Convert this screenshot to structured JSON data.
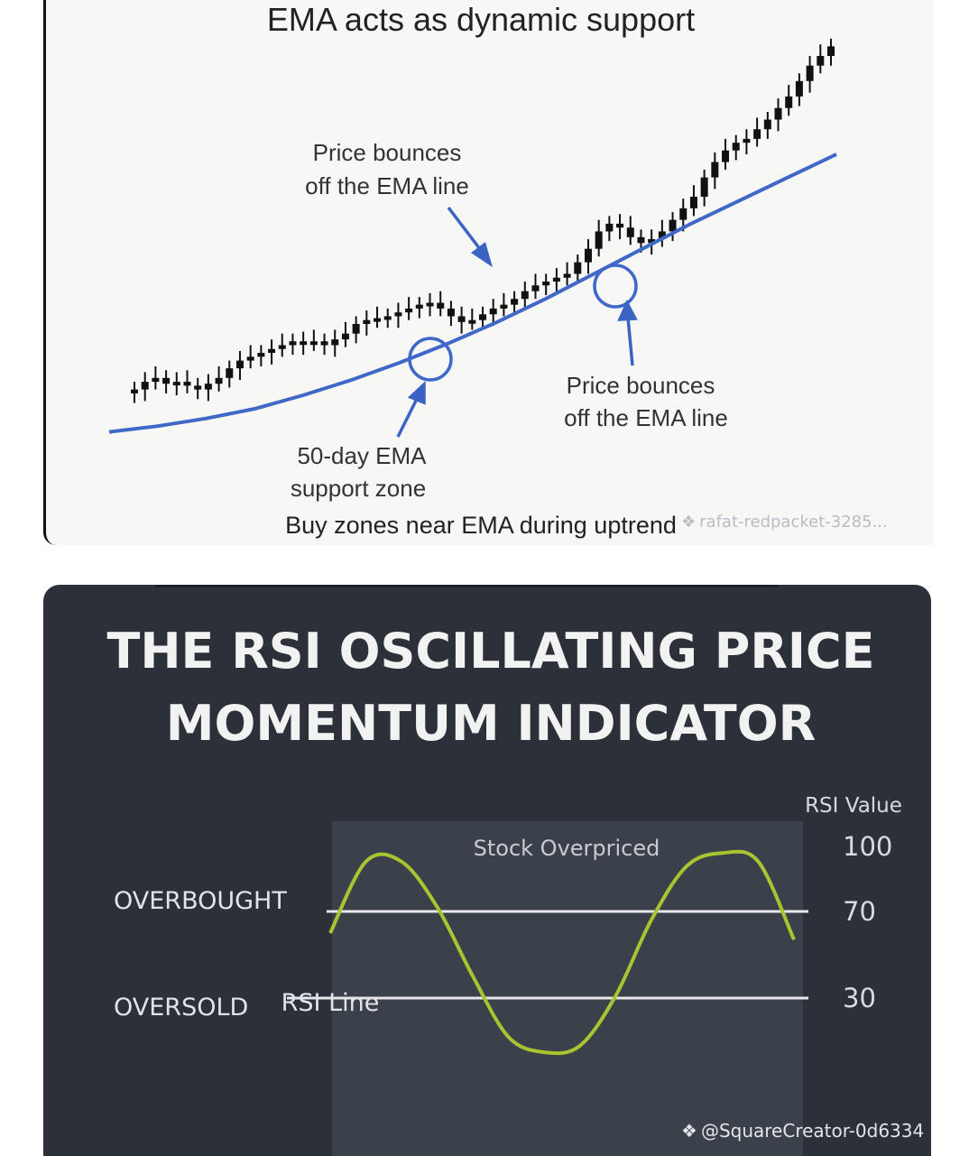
{
  "ema_panel": {
    "watermark": "rafat-redpacket-3285...",
    "watermark_icon": "diamond-logo-icon"
  },
  "rsi_panel": {
    "watermark": "@SquareCreator-0d6334",
    "watermark_icon": "diamond-logo-icon"
  },
  "colors": {
    "ema_background": "#f7f7f5",
    "candle": "#111111",
    "ema_line": "#3f68c8",
    "arrow": "#3a63c4",
    "rsi_background": "#2b3039",
    "rsi_zone": "#3b414a",
    "rsi_line": "#a6c531",
    "rsi_levels": "#e6e8ea"
  },
  "chart_data": [
    {
      "type": "candlestick",
      "title": "EMA acts as dynamic support",
      "subtitle": "Buy zones near EMA during uptrend",
      "series": [
        {
          "name": "Price",
          "values": [
            22,
            26,
            28,
            25,
            26,
            24,
            22,
            25,
            28,
            33,
            37,
            39,
            41,
            43,
            45,
            47,
            46,
            47,
            45,
            48,
            51,
            56,
            58,
            59,
            60,
            62,
            64,
            66,
            67,
            64,
            60,
            57,
            58,
            61,
            64,
            66,
            69,
            73,
            76,
            78,
            80,
            82,
            88,
            95,
            104,
            108,
            106,
            101,
            98,
            100,
            104,
            110,
            116,
            122,
            132,
            140,
            146,
            150,
            152,
            157,
            162,
            168,
            174,
            182,
            190,
            195,
            200
          ]
        },
        {
          "name": "50-day EMA",
          "values": [
            0,
            3,
            7,
            12,
            19,
            27,
            36,
            46,
            57,
            69,
            82,
            95,
            108,
            120,
            132,
            144
          ]
        }
      ],
      "annotations": [
        {
          "text_lines": [
            "Price bounces",
            "off the EMA line"
          ],
          "target": "candles"
        },
        {
          "text_lines": [
            "Price bounces",
            "off the EMA line"
          ],
          "target": "ema-touch-2"
        },
        {
          "text_lines": [
            "50-day EMA",
            "support zone"
          ],
          "target": "ema-touch-1"
        }
      ],
      "ylim": [
        -10,
        210
      ]
    },
    {
      "type": "line",
      "title_lines": [
        "THE RSI OSCILLATING PRICE",
        "MOMENTUM INDICATOR"
      ],
      "ylabel": "RSI Value",
      "yticks": [
        100,
        70,
        30
      ],
      "ylim": [
        0,
        100
      ],
      "levels": [
        {
          "label": "OVERBOUGHT",
          "value": 70
        },
        {
          "label": "OVERSOLD",
          "value": 30
        }
      ],
      "zone_label": "Stock Overpriced",
      "line_label": "RSI Line",
      "series": [
        {
          "name": "RSI Line",
          "values": [
            60,
            93,
            93,
            72,
            40,
            12,
            5,
            8,
            31,
            66,
            91,
            97,
            93,
            57
          ]
        }
      ]
    }
  ]
}
